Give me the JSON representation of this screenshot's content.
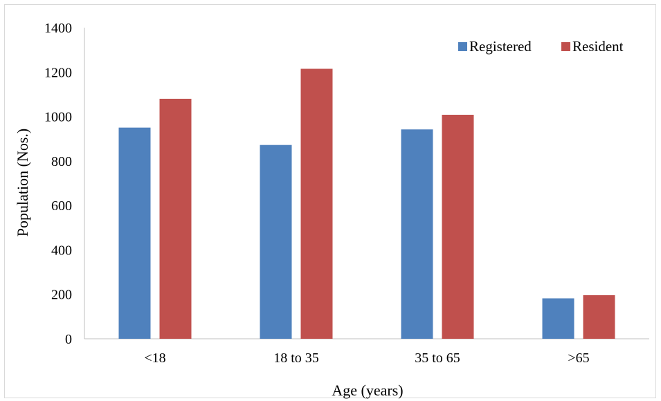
{
  "chart_data": {
    "type": "bar",
    "categories": [
      "<18",
      "18 to 35",
      "35 to 65",
      ">65"
    ],
    "series": [
      {
        "name": "Registered",
        "color": "#4f81bd",
        "values": [
          950,
          872,
          942,
          182
        ]
      },
      {
        "name": "Resident",
        "color": "#c0504d",
        "values": [
          1080,
          1215,
          1008,
          196
        ]
      }
    ],
    "xlabel": "Age (years)",
    "ylabel": "Population (Nos.)",
    "ylim": [
      0,
      1400
    ],
    "yticks": [
      "0",
      "200",
      "400",
      "600",
      "800",
      "1000",
      "1200",
      "1400"
    ],
    "grid": false,
    "legend_position": "top-right"
  }
}
